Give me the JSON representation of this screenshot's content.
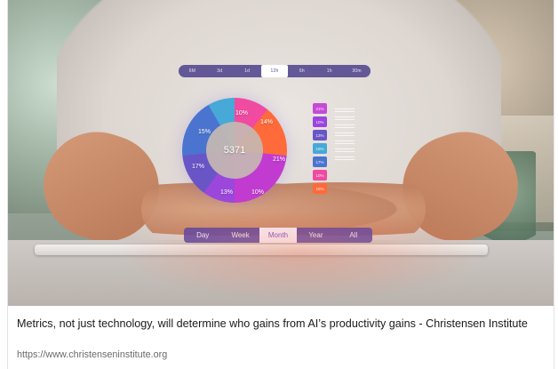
{
  "card": {
    "headline": "Metrics, not just technology, will determine who gains from AI’s productivity gains - Christensen Institute",
    "url": "https://www.christenseninstitute.org"
  },
  "hud": {
    "top_pills": [
      {
        "label": "6M"
      },
      {
        "label": "3d"
      },
      {
        "label": "1d"
      },
      {
        "label": "12h",
        "active": true
      },
      {
        "label": "6h"
      },
      {
        "label": "1h"
      },
      {
        "label": "30m"
      }
    ],
    "donut": {
      "center_value": "5371",
      "segments": [
        {
          "label": "10%"
        },
        {
          "label": "14%"
        },
        {
          "label": "21%"
        },
        {
          "label": "10%"
        },
        {
          "label": "13%"
        },
        {
          "label": "17%"
        },
        {
          "label": "15%"
        }
      ]
    },
    "vertical_bars": [
      {
        "label": "21%",
        "color": "#c64ad6"
      },
      {
        "label": "10%",
        "color": "#9a45dd"
      },
      {
        "label": "13%",
        "color": "#6a55c6"
      },
      {
        "label": "15%",
        "color": "#46a9d7"
      },
      {
        "label": "17%",
        "color": "#4a74cf"
      },
      {
        "label": "10%",
        "color": "#f04aa1"
      },
      {
        "label": "15%",
        "color": "#ff6a3a"
      }
    ],
    "range_tabs": [
      {
        "label": "Day"
      },
      {
        "label": "Week"
      },
      {
        "label": "Month",
        "active": true
      },
      {
        "label": "Year"
      },
      {
        "label": "All"
      }
    ],
    "colors": {
      "hud_purple": "#5844A4",
      "accent_pink": "#F04AA1",
      "accent_orange": "#FF6A3A",
      "accent_blue": "#46A9D7"
    }
  }
}
